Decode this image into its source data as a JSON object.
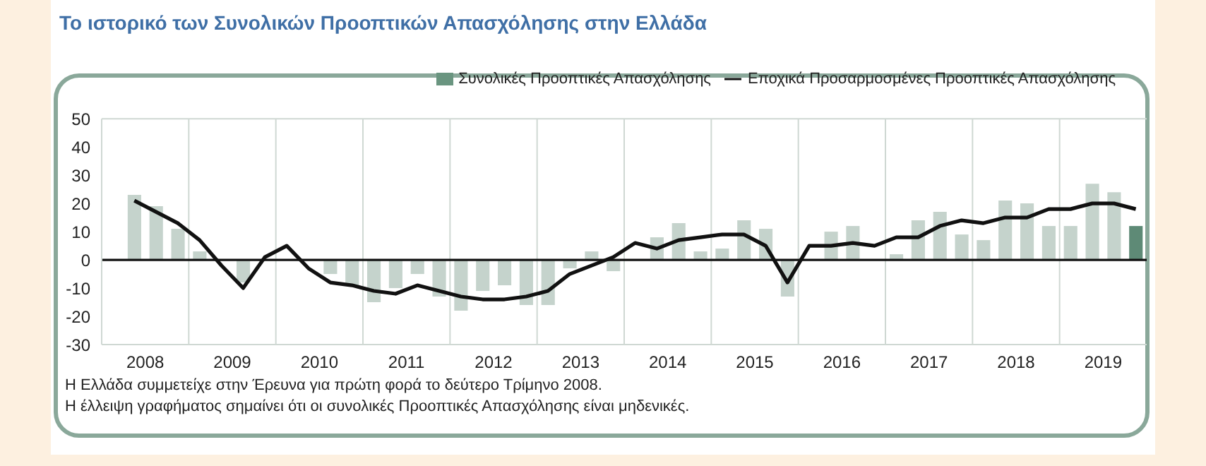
{
  "chart_data": {
    "type": "bar",
    "title": "Το ιστορικό των Συνολικών Προοπτικών Απασχόλησης στην Ελλάδα",
    "x": [
      2008.375,
      2008.625,
      2008.875,
      2009.125,
      2009.375,
      2009.625,
      2009.875,
      2010.125,
      2010.375,
      2010.625,
      2010.875,
      2011.125,
      2011.375,
      2011.625,
      2011.875,
      2012.125,
      2012.375,
      2012.625,
      2012.875,
      2013.125,
      2013.375,
      2013.625,
      2013.875,
      2014.125,
      2014.375,
      2014.625,
      2014.875,
      2015.125,
      2015.375,
      2015.625,
      2015.875,
      2016.125,
      2016.375,
      2016.625,
      2016.875,
      2017.125,
      2017.375,
      2017.625,
      2017.875,
      2018.125,
      2018.375,
      2018.625,
      2018.875,
      2019.125,
      2019.375,
      2019.625,
      2019.875
    ],
    "series": [
      {
        "name": "Συνολικές Προοπτικές Απασχόλησης",
        "color": "#6a9580",
        "colors": [
          "#c5d3cc",
          "#c5d3cc",
          "#c5d3cc",
          "#c5d3cc",
          "#c5d3cc",
          "#c5d3cc",
          "#c5d3cc",
          "#c5d3cc",
          "#c5d3cc",
          "#c5d3cc",
          "#c5d3cc",
          "#c5d3cc",
          "#c5d3cc",
          "#c5d3cc",
          "#c5d3cc",
          "#c5d3cc",
          "#c5d3cc",
          "#c5d3cc",
          "#c5d3cc",
          "#c5d3cc",
          "#c5d3cc",
          "#c5d3cc",
          "#c5d3cc",
          "#c5d3cc",
          "#c5d3cc",
          "#c5d3cc",
          "#c5d3cc",
          "#c5d3cc",
          "#c5d3cc",
          "#c5d3cc",
          "#c5d3cc",
          "#c5d3cc",
          "#c5d3cc",
          "#c5d3cc",
          "#c5d3cc",
          "#c5d3cc",
          "#c5d3cc",
          "#c5d3cc",
          "#c5d3cc",
          "#c5d3cc",
          "#c5d3cc",
          "#c5d3cc",
          "#c5d3cc",
          "#c5d3cc",
          "#c5d3cc",
          "#c5d3cc",
          "#5e8a76"
        ],
        "values": [
          23,
          19,
          11,
          3,
          0,
          -8,
          0,
          0,
          0,
          -5,
          -9,
          -15,
          -10,
          -5,
          -13,
          -18,
          -11,
          -9,
          -16,
          -16,
          -3,
          3,
          -4,
          0,
          8,
          13,
          3,
          4,
          14,
          11,
          -13,
          0,
          10,
          12,
          0,
          2,
          14,
          17,
          9,
          7,
          21,
          20,
          12,
          12,
          27,
          24,
          12
        ]
      },
      {
        "name": "Εποχικά Προσαρμοσμένες Προοπτικές Απασχόλησης",
        "type": "line",
        "color": "#111111",
        "values": [
          21,
          17,
          13,
          7,
          -2,
          -10,
          1,
          5,
          -3,
          -8,
          -9,
          -11,
          -12,
          -9,
          -11,
          -13,
          -14,
          -14,
          -13,
          -11,
          -5,
          -2,
          1,
          6,
          4,
          7,
          8,
          9,
          9,
          5,
          -8,
          5,
          5,
          6,
          5,
          8,
          8,
          12,
          14,
          13,
          15,
          15,
          18,
          18,
          20,
          20,
          18
        ]
      }
    ],
    "xlim": [
      2008,
      2020
    ],
    "xticks": [
      {
        "value": 2008.5,
        "label": "2008"
      },
      {
        "value": 2009,
        "label": null
      },
      {
        "value": 2009.5,
        "label": "2009"
      },
      {
        "value": 2010,
        "label": null
      },
      {
        "value": 2010.5,
        "label": "2010"
      },
      {
        "value": 2011,
        "label": null
      },
      {
        "value": 2011.5,
        "label": "2011"
      },
      {
        "value": 2012,
        "label": null
      },
      {
        "value": 2012.5,
        "label": "2012"
      },
      {
        "value": 2013,
        "label": null
      },
      {
        "value": 2013.5,
        "label": "2013"
      },
      {
        "value": 2014,
        "label": null
      },
      {
        "value": 2014.5,
        "label": "2014"
      },
      {
        "value": 2015,
        "label": null
      },
      {
        "value": 2015.5,
        "label": "2015"
      },
      {
        "value": 2016,
        "label": null
      },
      {
        "value": 2016.5,
        "label": "2016"
      },
      {
        "value": 2017,
        "label": null
      },
      {
        "value": 2017.5,
        "label": "2017"
      },
      {
        "value": 2018,
        "label": null
      },
      {
        "value": 2018.5,
        "label": "2018"
      },
      {
        "value": 2019,
        "label": null
      },
      {
        "value": 2019.5,
        "label": "2019"
      }
    ],
    "ylim": [
      -30,
      50
    ],
    "yticks": [
      -30,
      -20,
      -10,
      0,
      10,
      20,
      30,
      40,
      50
    ],
    "ref_lines": [
      {
        "axis": "y",
        "value": 0,
        "color": "#111111"
      }
    ],
    "grid": true,
    "legend": "top right",
    "marker": "none",
    "line_style": "solid",
    "annotations": [
      "Η Ελλάδα συμμετείχε στην Έρευνα για πρώτη φορά το δεύτερο Τρίμηνο 2008.",
      "Η έλλειψη γραφήματος σημαίνει ότι οι συνολικές Προοπτικές Απασχόλησης είναι μηδενικές."
    ]
  }
}
